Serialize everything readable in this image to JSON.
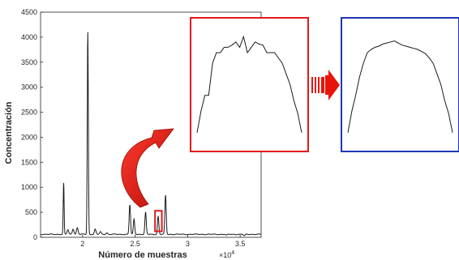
{
  "chart_data": [
    {
      "type": "line",
      "role": "main-chromatogram",
      "xlabel": "Número de muestras",
      "ylabel": "Concentración",
      "x_multiplier_label": "×10",
      "x_multiplier_exponent": "4",
      "xlim": [
        16000,
        37000
      ],
      "ylim": [
        0,
        4500
      ],
      "xticks": [
        20000,
        25000,
        30000,
        35000
      ],
      "xtick_labels": [
        "2",
        "2.5",
        "3",
        "3.5"
      ],
      "yticks": [
        0,
        500,
        1000,
        1500,
        2000,
        2500,
        3000,
        3500,
        4000,
        4500
      ],
      "ytick_labels": [
        "0",
        "500",
        "1000",
        "1500",
        "2000",
        "2500",
        "3000",
        "3500",
        "4000",
        "4500"
      ],
      "grid": false,
      "baseline": 60,
      "peaks": [
        {
          "x": 18200,
          "y": 1080
        },
        {
          "x": 18600,
          "y": 150
        },
        {
          "x": 19100,
          "y": 170
        },
        {
          "x": 19500,
          "y": 190
        },
        {
          "x": 20500,
          "y": 4100
        },
        {
          "x": 21200,
          "y": 160
        },
        {
          "x": 21700,
          "y": 110
        },
        {
          "x": 22300,
          "y": 90
        },
        {
          "x": 24500,
          "y": 650
        },
        {
          "x": 24900,
          "y": 360
        },
        {
          "x": 26000,
          "y": 500
        },
        {
          "x": 27200,
          "y": 420
        },
        {
          "x": 27900,
          "y": 840
        },
        {
          "x": 33700,
          "y": 40
        },
        {
          "x": 35400,
          "y": 30
        }
      ]
    },
    {
      "type": "line",
      "role": "zoom-raw",
      "frame_color": "#e31a1c",
      "x": [
        0,
        1,
        2,
        3,
        4,
        5,
        6,
        7,
        8,
        9,
        10,
        11,
        12,
        13,
        14,
        15,
        16,
        17,
        18,
        19,
        20,
        21,
        22,
        23,
        24,
        25,
        26,
        27
      ],
      "y": [
        10,
        30,
        45,
        45,
        75,
        85,
        85,
        90,
        90,
        92,
        95,
        90,
        100,
        85,
        90,
        95,
        93,
        92,
        85,
        85,
        85,
        80,
        75,
        65,
        55,
        40,
        28,
        10
      ]
    },
    {
      "type": "line",
      "role": "zoom-smoothed",
      "frame_color": "#1f36b4",
      "x": [
        0,
        1,
        2,
        3,
        4,
        5,
        6,
        7,
        8,
        9,
        10,
        11,
        12,
        13,
        14,
        15,
        16,
        17,
        18,
        19,
        20,
        21,
        22,
        23,
        24,
        25,
        26,
        27
      ],
      "y": [
        10,
        30,
        45,
        62,
        75,
        85,
        88,
        90,
        91,
        93,
        94,
        95,
        96,
        94,
        92,
        91,
        90,
        89,
        88,
        86,
        84,
        80,
        75,
        65,
        55,
        40,
        28,
        10
      ]
    }
  ],
  "colors": {
    "trace": "#1a1a1a",
    "axis": "#262626",
    "highlight_box": "#e31a1c",
    "curved_arrow": "#e8140c",
    "block_arrow": "#e8140c",
    "raw_frame": "#e31a1c",
    "smooth_frame": "#1f36b4"
  }
}
